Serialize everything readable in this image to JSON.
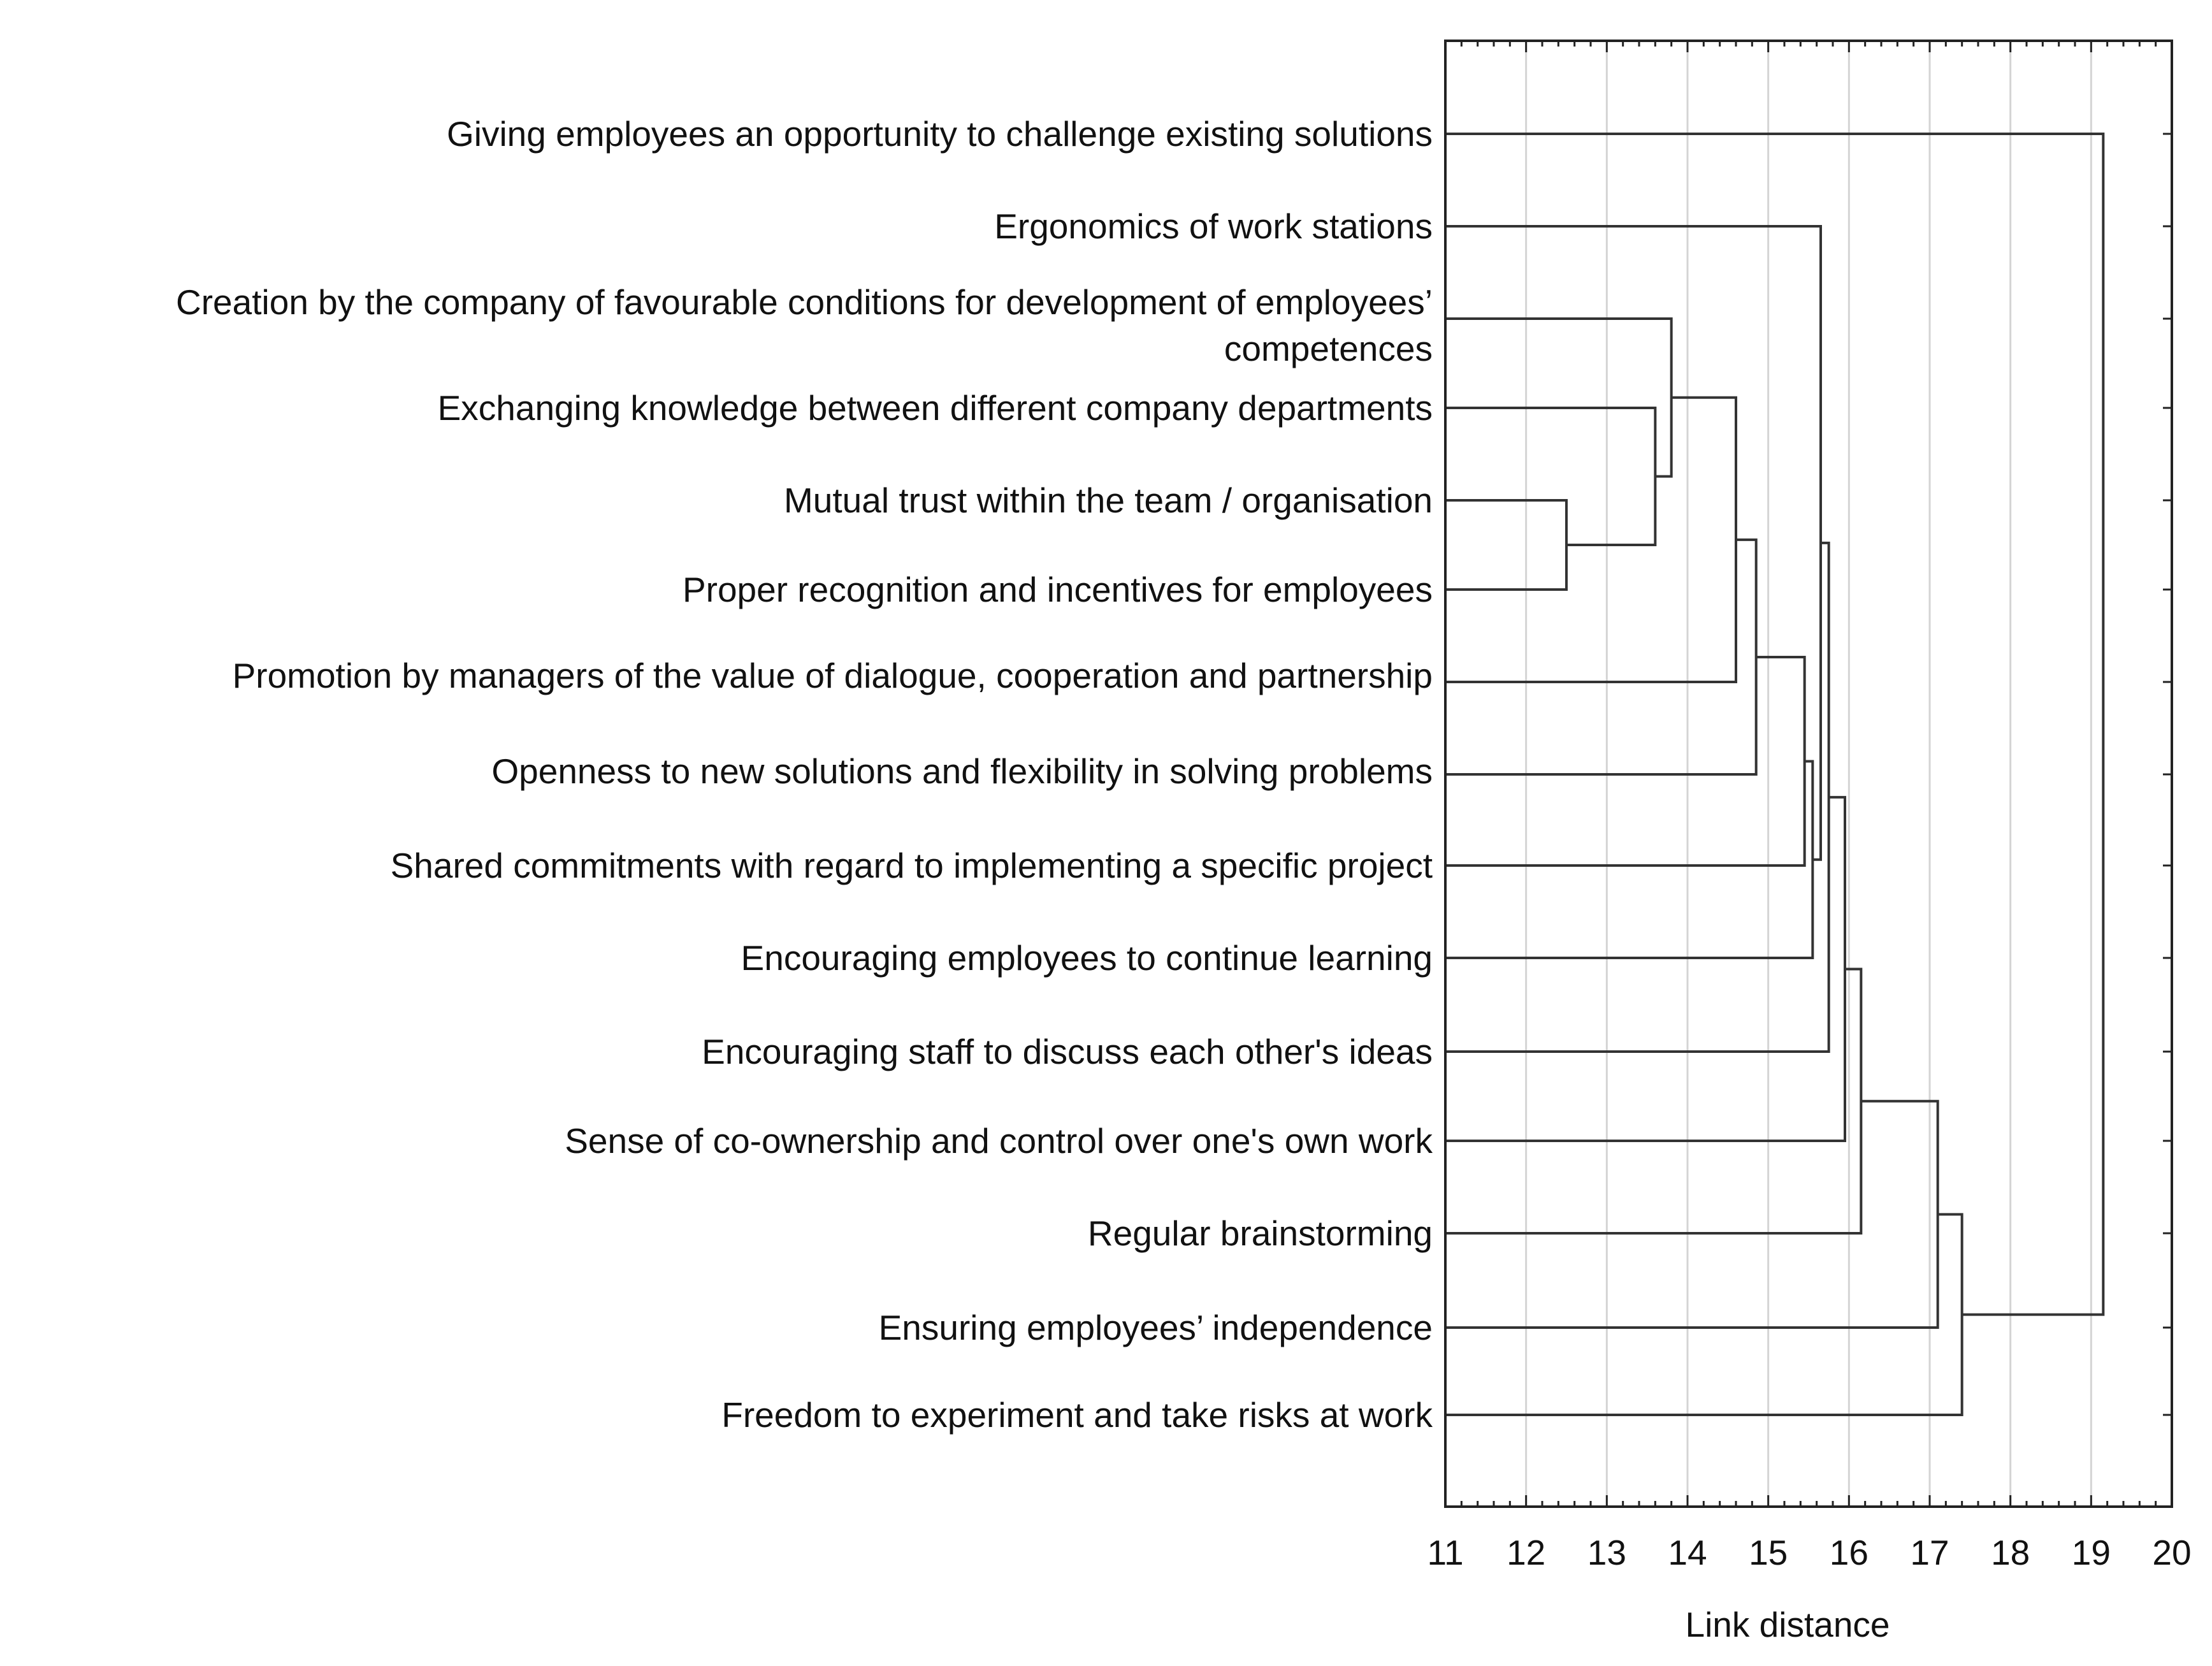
{
  "chart_data": {
    "type": "dendrogram",
    "orientation": "horizontal",
    "xlabel": "Link distance",
    "xlim": [
      11,
      20
    ],
    "xticks": [
      "11",
      "12",
      "13",
      "14",
      "15",
      "16",
      "17",
      "18",
      "19",
      "20"
    ],
    "grid": "vertical",
    "leaves": [
      [
        "Giving employees an opportunity to challenge existing solutions"
      ],
      [
        "Ergonomics of work stations"
      ],
      [
        "Creation by the company of favourable conditions for development of employees’",
        "competences"
      ],
      [
        "Exchanging knowledge between different company departments"
      ],
      [
        "Mutual trust within the team / organisation"
      ],
      [
        "Proper recognition and incentives for employees"
      ],
      [
        "Promotion by managers of the value of dialogue, cooperation and partnership"
      ],
      [
        "Openness to new solutions and flexibility in solving problems"
      ],
      [
        "Shared commitments with regard to implementing a specific project"
      ],
      [
        "Encouraging employees to continue learning"
      ],
      [
        "Encouraging staff to discuss each other's ideas"
      ],
      [
        "Sense of co-ownership and control over one's own work"
      ],
      [
        "Regular brainstorming"
      ],
      [
        "Ensuring employees’ independence"
      ],
      [
        "Freedom to experiment and take risks at work"
      ]
    ],
    "merges": [
      {
        "id": "c1",
        "left": "L4",
        "right": "L5",
        "distance": 12.5
      },
      {
        "id": "c2",
        "left": "L3",
        "right": "c1",
        "distance": 13.6
      },
      {
        "id": "c3",
        "left": "L2",
        "right": "c2",
        "distance": 13.8
      },
      {
        "id": "c4",
        "left": "c3",
        "right": "L6",
        "distance": 14.6
      },
      {
        "id": "c5",
        "left": "c4",
        "right": "L7",
        "distance": 14.85
      },
      {
        "id": "c6",
        "left": "c5",
        "right": "L8",
        "distance": 15.45
      },
      {
        "id": "c7",
        "left": "c6",
        "right": "L9",
        "distance": 15.55
      },
      {
        "id": "c8",
        "left": "L1",
        "right": "c7",
        "distance": 15.65
      },
      {
        "id": "c9",
        "left": "c8",
        "right": "L10",
        "distance": 15.75
      },
      {
        "id": "c10",
        "left": "c9",
        "right": "L11",
        "distance": 15.95
      },
      {
        "id": "c11",
        "left": "c10",
        "right": "L12",
        "distance": 16.15
      },
      {
        "id": "c12",
        "left": "c11",
        "right": "L13",
        "distance": 17.1
      },
      {
        "id": "c13",
        "left": "c12",
        "right": "L14",
        "distance": 17.4
      },
      {
        "id": "c14",
        "left": "L0",
        "right": "c13",
        "distance": 19.15
      }
    ]
  },
  "colors": {
    "line": "#333333",
    "frame": "#222222",
    "grid": "#d4d4d4",
    "text": "#111111"
  }
}
